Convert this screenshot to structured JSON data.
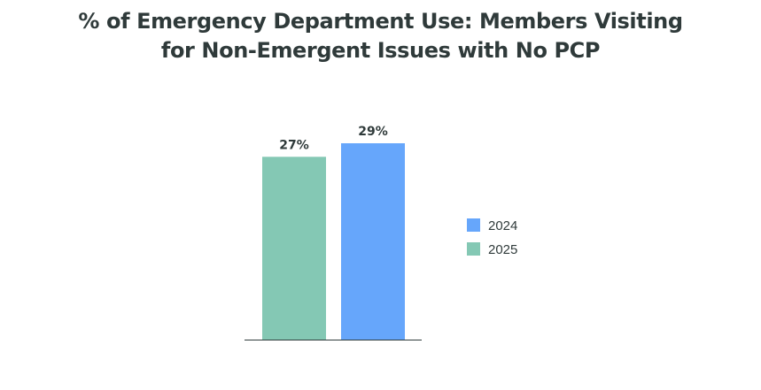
{
  "title": {
    "line1": "% of Emergency Department Use: Members Visiting",
    "line2": "for Non-Emergent Issues with No PCP"
  },
  "colors": {
    "2025": "#84c8b4",
    "2024": "#66a6fb",
    "text": "#2f3a3a",
    "axis": "#2f3a3a"
  },
  "chart_data": {
    "type": "bar",
    "title": "% of Emergency Department Use: Members Visiting for Non-Emergent Issues with No PCP",
    "xlabel": "",
    "ylabel": "",
    "grid": false,
    "legend_position": "right",
    "ylim": [
      0,
      33
    ],
    "unit": "%",
    "series": [
      {
        "name": "2025",
        "values": [
          27
        ],
        "label": "27%"
      },
      {
        "name": "2024",
        "values": [
          29
        ],
        "label": "29%"
      }
    ],
    "bar_order": [
      "2025",
      "2024"
    ],
    "legend_order": [
      "2024",
      "2025"
    ]
  }
}
